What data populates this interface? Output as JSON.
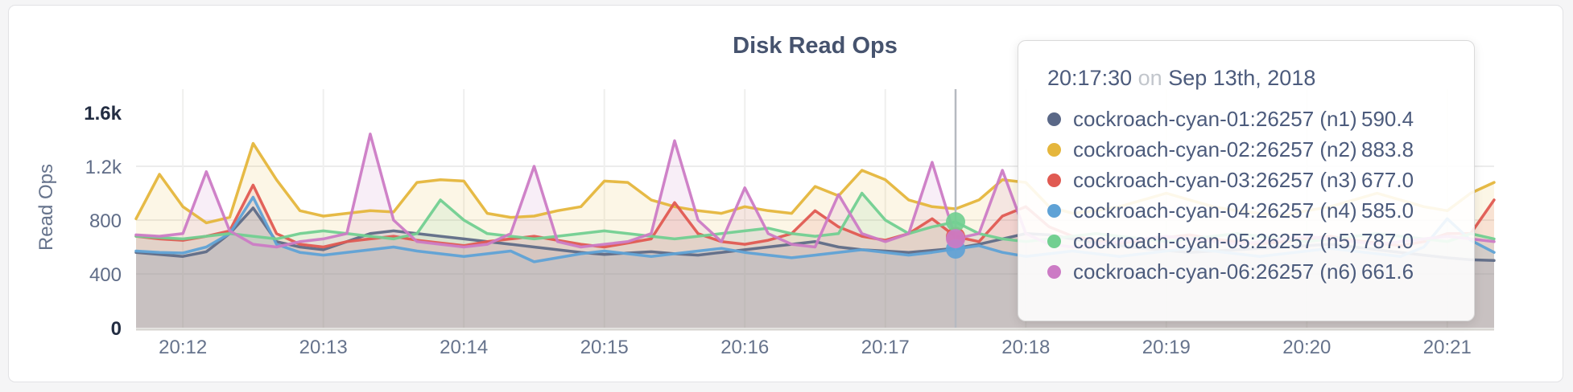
{
  "page": {
    "background": "#f5f5f6",
    "card_border": "#e2e2e5"
  },
  "chart_data": {
    "type": "line",
    "title": "Disk Read Ops",
    "xlabel": "",
    "ylabel": "Read Ops",
    "ylim": [
      0,
      1600
    ],
    "grid": true,
    "ytick_values": [
      0,
      400,
      800,
      1200,
      1600
    ],
    "ytick_labels": [
      "0",
      "400",
      "800",
      "1.2k",
      "1.6k"
    ],
    "xtick_labels": [
      "20:12",
      "20:13",
      "20:14",
      "20:15",
      "20:16",
      "20:17",
      "20:18",
      "20:19",
      "20:20",
      "20:21"
    ],
    "x_start": "20:11:40",
    "x_step_seconds": 10,
    "series": [
      {
        "name": "cockroach-cyan-01:26257 (n1)",
        "color": "#5f6c87",
        "values": [
          560,
          545,
          530,
          565,
          700,
          890,
          640,
          600,
          580,
          640,
          700,
          720,
          700,
          680,
          660,
          640,
          620,
          600,
          580,
          560,
          545,
          555,
          565,
          550,
          540,
          560,
          580,
          600,
          620,
          640,
          600,
          580,
          570,
          560,
          575,
          590.4,
          620,
          660,
          700,
          690,
          660,
          630,
          610,
          590,
          575,
          560,
          570,
          580,
          590,
          600,
          610,
          620,
          600,
          580,
          560,
          540,
          520,
          505,
          500
        ]
      },
      {
        "name": "cockroach-cyan-02:26257 (n2)",
        "color": "#e5b63c",
        "values": [
          810,
          1140,
          900,
          780,
          820,
          1370,
          1100,
          870,
          830,
          850,
          870,
          860,
          1080,
          1100,
          1090,
          850,
          820,
          830,
          870,
          900,
          1090,
          1080,
          950,
          900,
          870,
          850,
          900,
          870,
          850,
          1050,
          980,
          1170,
          1100,
          950,
          900,
          883.8,
          950,
          1100,
          1080,
          900,
          850,
          870,
          900,
          950,
          1000,
          950,
          900,
          870,
          850,
          830,
          870,
          900,
          950,
          1000,
          950,
          900,
          870,
          1000,
          1080
        ]
      },
      {
        "name": "cockroach-cyan-03:26257 (n3)",
        "color": "#e05a52",
        "values": [
          680,
          660,
          650,
          680,
          720,
          1060,
          700,
          620,
          600,
          640,
          660,
          680,
          650,
          630,
          610,
          640,
          660,
          680,
          650,
          620,
          600,
          630,
          660,
          930,
          700,
          640,
          620,
          650,
          700,
          870,
          750,
          680,
          650,
          700,
          810,
          677,
          640,
          830,
          900,
          750,
          680,
          650,
          630,
          650,
          670,
          690,
          660,
          640,
          620,
          640,
          660,
          680,
          650,
          630,
          610,
          640,
          700,
          700,
          950
        ]
      },
      {
        "name": "cockroach-cyan-04:26257 (n4)",
        "color": "#5fa2d6",
        "values": [
          570,
          560,
          555,
          600,
          700,
          970,
          620,
          560,
          540,
          560,
          580,
          600,
          570,
          550,
          530,
          550,
          570,
          490,
          520,
          550,
          570,
          550,
          530,
          550,
          570,
          590,
          560,
          540,
          520,
          540,
          560,
          580,
          560,
          540,
          560,
          585,
          610,
          560,
          530,
          550,
          570,
          550,
          530,
          550,
          570,
          590,
          570,
          550,
          530,
          550,
          570,
          590,
          570,
          550,
          530,
          600,
          810,
          650,
          560
        ]
      },
      {
        "name": "cockroach-cyan-05:26257 (n5)",
        "color": "#72cf91",
        "values": [
          680,
          670,
          660,
          680,
          700,
          680,
          660,
          700,
          720,
          700,
          680,
          660,
          700,
          950,
          800,
          700,
          680,
          660,
          680,
          700,
          720,
          700,
          680,
          660,
          680,
          700,
          720,
          740,
          700,
          680,
          700,
          1000,
          800,
          700,
          750,
          787,
          700,
          660,
          640,
          660,
          680,
          700,
          680,
          660,
          640,
          660,
          680,
          700,
          680,
          660,
          640,
          660,
          680,
          700,
          680,
          660,
          640,
          700,
          660
        ]
      },
      {
        "name": "cockroach-cyan-06:26257 (n6)",
        "color": "#cc7bc5",
        "values": [
          690,
          680,
          700,
          1160,
          720,
          620,
          600,
          640,
          660,
          700,
          1440,
          800,
          640,
          620,
          600,
          620,
          700,
          1200,
          640,
          600,
          620,
          640,
          700,
          1390,
          800,
          640,
          1040,
          700,
          620,
          600,
          990,
          700,
          640,
          700,
          1230,
          661.6,
          700,
          1170,
          700,
          620,
          600,
          620,
          640,
          660,
          680,
          660,
          640,
          620,
          640,
          660,
          680,
          660,
          640,
          620,
          640,
          660,
          680,
          660,
          640
        ]
      }
    ]
  },
  "hover": {
    "time": "20:17:30",
    "index": 35,
    "dot_series_indexes": [
      2,
      4,
      3,
      5
    ]
  },
  "tooltip": {
    "time": "20:17:30",
    "separator": "on",
    "date": "Sep 13th, 2018",
    "rows": [
      {
        "label": "cockroach-cyan-01:26257 (n1)",
        "value": "590.4",
        "color": "#5a6887"
      },
      {
        "label": "cockroach-cyan-02:26257 (n2)",
        "value": "883.8",
        "color": "#e5b63c"
      },
      {
        "label": "cockroach-cyan-03:26257 (n3)",
        "value": "677.0",
        "color": "#e05a52"
      },
      {
        "label": "cockroach-cyan-04:26257 (n4)",
        "value": "585.0",
        "color": "#5fa2d6"
      },
      {
        "label": "cockroach-cyan-05:26257 (n5)",
        "value": "787.0",
        "color": "#72cf91"
      },
      {
        "label": "cockroach-cyan-06:26257 (n6)",
        "value": "661.6",
        "color": "#cc7bc5"
      }
    ]
  }
}
